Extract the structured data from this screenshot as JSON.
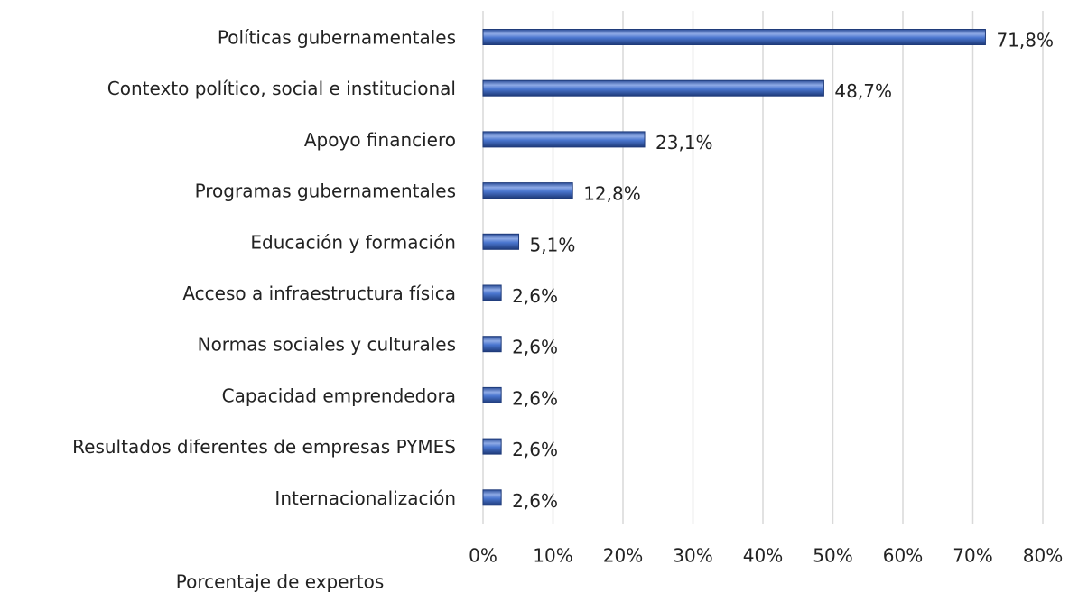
{
  "chart_data": {
    "type": "bar",
    "orientation": "horizontal",
    "x_label": "Porcentaje de expertos",
    "categories": [
      "Políticas gubernamentales",
      "Contexto político, social e institucional",
      "Apoyo financiero",
      "Programas gubernamentales",
      "Educación y formación",
      "Acceso a infraestructura física",
      "Normas sociales y culturales",
      "Capacidad emprendedora",
      "Resultados diferentes de empresas PYMES",
      "Internacionalización"
    ],
    "values": [
      71.8,
      48.7,
      23.1,
      12.8,
      5.1,
      2.6,
      2.6,
      2.6,
      2.6,
      2.6
    ],
    "value_labels": [
      "71,8%",
      "48,7%",
      "23,1%",
      "12,8%",
      "5,1%",
      "2,6%",
      "2,6%",
      "2,6%",
      "2,6%",
      "2,6%"
    ],
    "color": "#4472c4",
    "xlim": [
      0,
      80
    ],
    "xticks": [
      {
        "value": 0,
        "label": "0%"
      },
      {
        "value": 10,
        "label": "10%"
      },
      {
        "value": 20,
        "label": "20%"
      },
      {
        "value": 30,
        "label": "30%"
      },
      {
        "value": 40,
        "label": "40%"
      },
      {
        "value": 50,
        "label": "50%"
      },
      {
        "value": 60,
        "label": "60%"
      },
      {
        "value": 70,
        "label": "70%"
      },
      {
        "value": 80,
        "label": "80%"
      }
    ],
    "grid": true
  }
}
